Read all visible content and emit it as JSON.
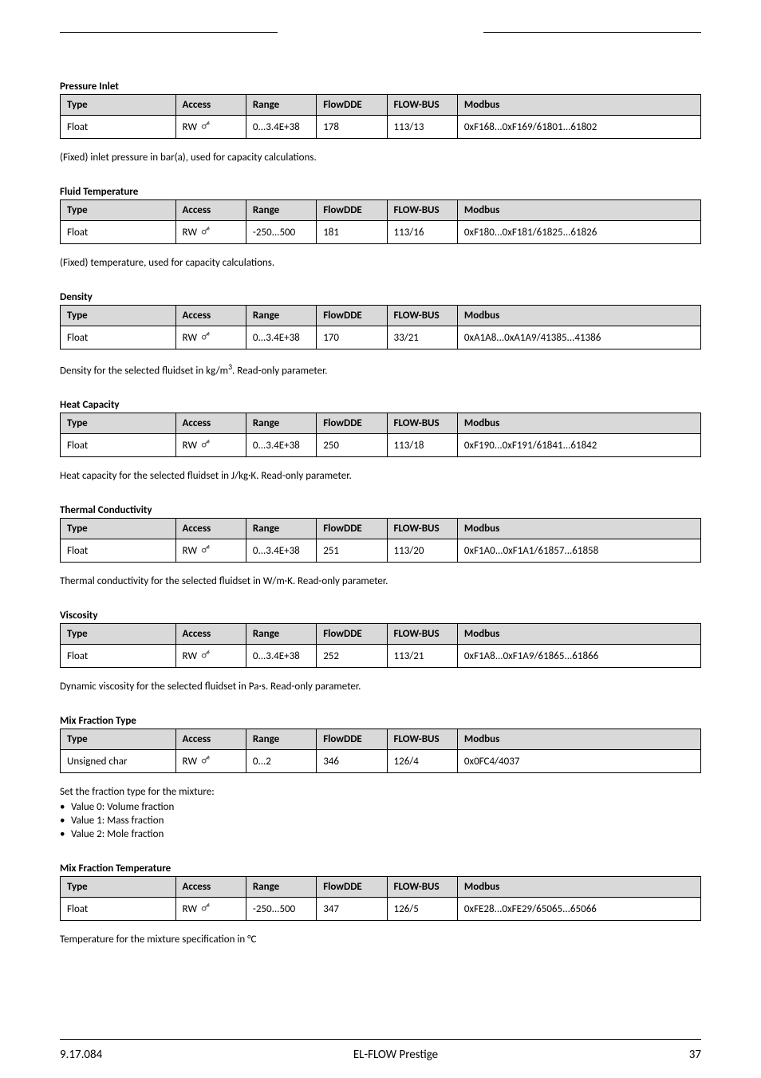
{
  "headers": {
    "type": "Type",
    "access": "Access",
    "range": "Range",
    "flowdde": "FlowDDE",
    "flowbus": "FLOW-BUS",
    "modbus": "Modbus"
  },
  "access_value": "RW",
  "params": [
    {
      "title": "Pressure Inlet",
      "row": {
        "type": "Float",
        "range": "0...3.4E+38",
        "flowdde": "178",
        "flowbus": "113/13",
        "modbus": "0xF168...0xF169/61801...61802"
      },
      "desc": "(Fixed) inlet pressure in bar(a), used for capacity calculations.",
      "bullets": []
    },
    {
      "title": "Fluid Temperature",
      "row": {
        "type": "Float",
        "range": "-250...500",
        "flowdde": "181",
        "flowbus": "113/16",
        "modbus": "0xF180...0xF181/61825...61826"
      },
      "desc": "(Fixed) temperature, used for capacity calculations.",
      "bullets": []
    },
    {
      "title": "Density",
      "row": {
        "type": "Float",
        "range": "0...3.4E+38",
        "flowdde": "170",
        "flowbus": "33/21",
        "modbus": "0xA1A8...0xA1A9/41385...41386"
      },
      "desc": "Density for the selected fluidset in kg/m<sup>3</sup>. Read-only parameter.",
      "bullets": []
    },
    {
      "title": "Heat Capacity",
      "row": {
        "type": "Float",
        "range": "0...3.4E+38",
        "flowdde": "250",
        "flowbus": "113/18",
        "modbus": "0xF190...0xF191/61841...61842"
      },
      "desc": "Heat capacity for the selected fluidset in J/kg·K. Read-only parameter.",
      "bullets": []
    },
    {
      "title": "Thermal Conductivity",
      "row": {
        "type": "Float",
        "range": "0...3.4E+38",
        "flowdde": "251",
        "flowbus": "113/20",
        "modbus": "0xF1A0...0xF1A1/61857...61858"
      },
      "desc": "Thermal conductivity for the selected fluidset in W/m·K. Read-only parameter.",
      "bullets": []
    },
    {
      "title": "Viscosity",
      "row": {
        "type": "Float",
        "range": "0...3.4E+38",
        "flowdde": "252",
        "flowbus": "113/21",
        "modbus": "0xF1A8...0xF1A9/61865...61866"
      },
      "desc": "Dynamic viscosity for the selected fluidset in Pa·s. Read-only parameter.",
      "bullets": []
    },
    {
      "title": "Mix Fraction Type",
      "row": {
        "type": "Unsigned char",
        "range": "0...2",
        "flowdde": "346",
        "flowbus": "126/4",
        "modbus": "0x0FC4/4037"
      },
      "desc": "Set the fraction type for the mixture:",
      "bullets": [
        "Value 0: Volume fraction",
        "Value 1: Mass fraction",
        "Value 2: Mole fraction"
      ]
    },
    {
      "title": "Mix Fraction Temperature",
      "row": {
        "type": "Float",
        "range": "-250...500",
        "flowdde": "347",
        "flowbus": "126/5",
        "modbus": "0xFE28...0xFE29/65065...65066"
      },
      "desc": "Temperature for the mixture specification in °C",
      "bullets": []
    }
  ],
  "footer": {
    "doc_id": "9.17.084",
    "product": "EL-FLOW Prestige",
    "page": "37"
  }
}
